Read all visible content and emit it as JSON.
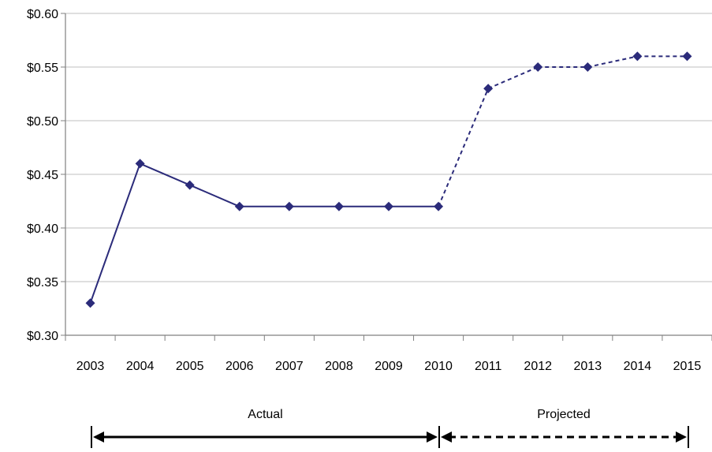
{
  "chart_data": {
    "type": "line",
    "title": "",
    "xlabel": "",
    "ylabel": "",
    "categories": [
      "2003",
      "2004",
      "2005",
      "2006",
      "2007",
      "2008",
      "2009",
      "2010",
      "2011",
      "2012",
      "2013",
      "2014",
      "2015"
    ],
    "series": [
      {
        "values": [
          0.33,
          0.46,
          0.44,
          0.42,
          0.42,
          0.42,
          0.42,
          0.42,
          0.53,
          0.55,
          0.55,
          0.56,
          0.56
        ],
        "line_style": [
          "solid",
          "solid",
          "solid",
          "solid",
          "solid",
          "solid",
          "solid",
          "dashed",
          "dashed",
          "dashed",
          "dashed",
          "dashed"
        ]
      }
    ],
    "ylim": [
      0.3,
      0.6
    ],
    "yticks": [
      0.3,
      0.35,
      0.4,
      0.45,
      0.5,
      0.55,
      0.6
    ],
    "ytick_labels": [
      "$0.30",
      "$0.35",
      "$0.40",
      "$0.45",
      "$0.50",
      "$0.55",
      "$0.60"
    ],
    "grid": true,
    "legend": "none",
    "periods": [
      {
        "label": "Actual",
        "from": "2003",
        "to": "2010",
        "style": "solid"
      },
      {
        "label": "Projected",
        "from": "2010",
        "to": "2015",
        "style": "dashed"
      }
    ],
    "colors": {
      "series": "#2b2b7a",
      "grid": "#bfbfbf",
      "axis": "#808080",
      "arrow": "#000000"
    }
  }
}
